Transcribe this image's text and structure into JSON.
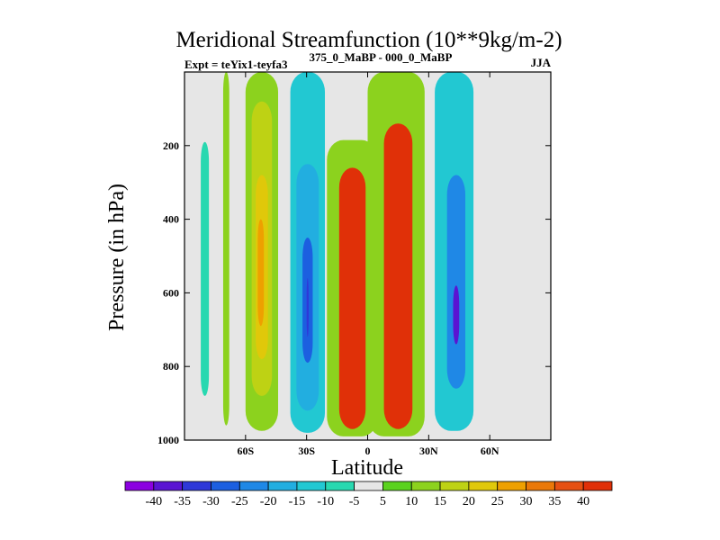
{
  "chart_data": {
    "type": "heatmap",
    "title": "Meridional Streamfunction (10**9kg/m-2)",
    "subtitle_left": "Expt = teYix1-teyfa3",
    "subtitle_center": "375_0_MaBP - 000_0_MaBP",
    "subtitle_right": "JJA",
    "xlabel": "Latitude",
    "ylabel": "Pressure (in hPa)",
    "xlim": [
      -90,
      90
    ],
    "ylim": [
      1000,
      0
    ],
    "x_ticks": [
      {
        "value": -60,
        "label": "60S"
      },
      {
        "value": -30,
        "label": "30S"
      },
      {
        "value": 0,
        "label": "0"
      },
      {
        "value": 30,
        "label": "30N"
      },
      {
        "value": 60,
        "label": "60N"
      }
    ],
    "y_ticks": [
      {
        "value": 200,
        "label": "200"
      },
      {
        "value": 400,
        "label": "400"
      },
      {
        "value": 600,
        "label": "600"
      },
      {
        "value": 800,
        "label": "800"
      },
      {
        "value": 1000,
        "label": "1000"
      }
    ],
    "colorbar": {
      "labels": [
        "-40",
        "-35",
        "-30",
        "-25",
        "-20",
        "-15",
        "-10",
        "-5",
        "5",
        "10",
        "15",
        "20",
        "25",
        "30",
        "35",
        "40"
      ],
      "colors": [
        "#8b00e0",
        "#5a14d2",
        "#2e38d8",
        "#1c5fe0",
        "#1f88e6",
        "#22aee0",
        "#22c8d2",
        "#28d8b0",
        "#e6e6e6",
        "#5ad21e",
        "#8cd21e",
        "#bed214",
        "#e0c80a",
        "#eea000",
        "#ea7808",
        "#e65012",
        "#e03008"
      ]
    },
    "grid": false,
    "missing_color": "#e6e6e6",
    "contours": [
      {
        "name": "sh-polar-cyan-band",
        "level": -5,
        "lat": [
          -82,
          -78
        ],
        "p": [
          190,
          880
        ]
      },
      {
        "name": "sh-green-band",
        "level": 10,
        "lat": [
          -71,
          -68
        ],
        "p": [
          0,
          960
        ]
      },
      {
        "name": "sh-subtropic-warm-outer",
        "level": 10,
        "lat": [
          -60,
          -44
        ],
        "p": [
          0,
          975
        ]
      },
      {
        "name": "sh-subtropic-warm-mid",
        "level": 15,
        "lat": [
          -57,
          -47
        ],
        "p": [
          80,
          880
        ]
      },
      {
        "name": "sh-subtropic-warm-inner",
        "level": 20,
        "lat": [
          -55,
          -49
        ],
        "p": [
          280,
          780
        ]
      },
      {
        "name": "sh-subtropic-warm-core",
        "level": 25,
        "lat": [
          -54,
          -51
        ],
        "p": [
          400,
          690
        ]
      },
      {
        "name": "sh-cool-outer",
        "level": -10,
        "lat": [
          -38,
          -21
        ],
        "p": [
          0,
          980
        ]
      },
      {
        "name": "sh-cool-mid",
        "level": -15,
        "lat": [
          -35,
          -24
        ],
        "p": [
          250,
          920
        ]
      },
      {
        "name": "sh-cool-inner",
        "level": -25,
        "lat": [
          -32,
          -27
        ],
        "p": [
          450,
          790
        ]
      },
      {
        "name": "sh-cool-core",
        "level": -30,
        "lat": [
          -30,
          -29
        ],
        "p": [
          560,
          720
        ]
      },
      {
        "name": "hadley-south-outer",
        "level": 10,
        "lat": [
          -20,
          5
        ],
        "p": [
          185,
          990
        ]
      },
      {
        "name": "hadley-south-core",
        "level": 40,
        "lat": [
          -14,
          -1
        ],
        "p": [
          260,
          970
        ]
      },
      {
        "name": "hadley-north-outer",
        "level": 10,
        "lat": [
          0,
          28
        ],
        "p": [
          0,
          990
        ]
      },
      {
        "name": "hadley-north-core",
        "level": 40,
        "lat": [
          8,
          22
        ],
        "p": [
          140,
          970
        ]
      },
      {
        "name": "nh-cool-outer",
        "level": -10,
        "lat": [
          33,
          52
        ],
        "p": [
          0,
          975
        ]
      },
      {
        "name": "nh-cool-inner",
        "level": -20,
        "lat": [
          39,
          48
        ],
        "p": [
          280,
          860
        ]
      },
      {
        "name": "nh-cool-core",
        "level": -35,
        "lat": [
          42,
          45
        ],
        "p": [
          580,
          740
        ]
      }
    ]
  }
}
